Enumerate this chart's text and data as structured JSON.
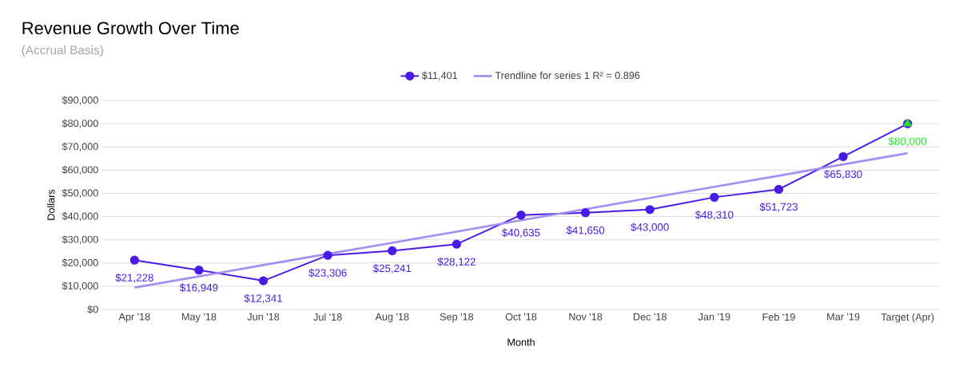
{
  "chart_data": {
    "type": "line",
    "title": "Revenue Growth Over Time",
    "subtitle": "(Accrual Basis)",
    "xlabel": "Month",
    "ylabel": "Dollars",
    "categories": [
      "Apr '18",
      "May '18",
      "Jun '18",
      "Jul '18",
      "Aug '18",
      "Sep '18",
      "Oct '18",
      "Nov '18",
      "Dec '18",
      "Jan '19",
      "Feb '19",
      "Mar '19",
      "Target (Apr)"
    ],
    "series": [
      {
        "name": "$11,401",
        "marker": "circle",
        "color": "#4a1be6",
        "values": [
          21228,
          16949,
          12341,
          23306,
          25241,
          28122,
          40635,
          41650,
          43000,
          48310,
          51723,
          65830,
          80000
        ],
        "value_labels": [
          "$21,228",
          "$16,949",
          "$12,341",
          "$23,306",
          "$25,241",
          "$28,122",
          "$40,635",
          "$41,650",
          "$43,000",
          "$48,310",
          "$51,723",
          "$65,830",
          null
        ]
      },
      {
        "type": "scatter",
        "marker": "triangle",
        "color": "#1ee61e",
        "values": [
          null,
          null,
          null,
          null,
          null,
          null,
          null,
          null,
          null,
          null,
          null,
          null,
          80000
        ],
        "value_labels": [
          null,
          null,
          null,
          null,
          null,
          null,
          null,
          null,
          null,
          null,
          null,
          null,
          "$80,000"
        ]
      },
      {
        "name": "Trendline for series 1 R² = 0.896",
        "marker": "none",
        "color": "#a38ff2",
        "values": [
          9400,
          14200,
          19100,
          23900,
          28700,
          33500,
          38400,
          43200,
          48000,
          52800,
          57600,
          62500,
          67300
        ]
      }
    ],
    "ylim": [
      0,
      90000
    ],
    "yticks": [
      {
        "value": 0,
        "label": "$0"
      },
      {
        "value": 10000,
        "label": "$10,000"
      },
      {
        "value": 20000,
        "label": "$20,000"
      },
      {
        "value": 30000,
        "label": "$30,000"
      },
      {
        "value": 40000,
        "label": "$40,000"
      },
      {
        "value": 50000,
        "label": "$50,000"
      },
      {
        "value": 60000,
        "label": "$60,000"
      },
      {
        "value": 70000,
        "label": "$70,000"
      },
      {
        "value": 80000,
        "label": "$80,000"
      },
      {
        "value": 90000,
        "label": "$90,000"
      }
    ],
    "grid": "y",
    "legend": "top"
  }
}
